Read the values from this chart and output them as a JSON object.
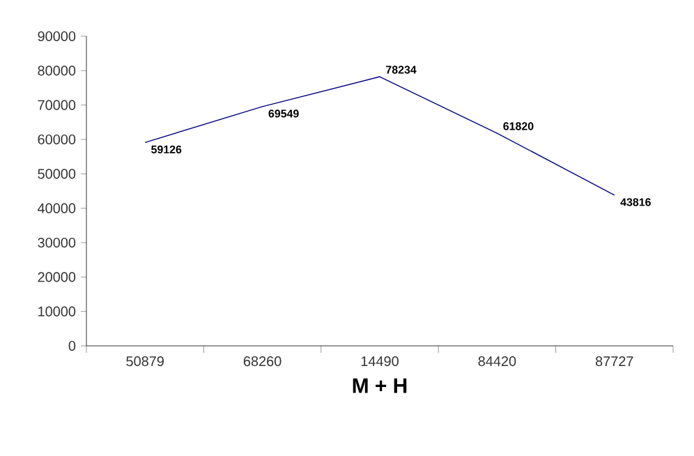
{
  "chart_data": {
    "type": "line",
    "xlabel": "M + H",
    "categories": [
      "50879",
      "68260",
      "14490",
      "84420",
      "87727"
    ],
    "values": [
      59126,
      69549,
      78234,
      61820,
      43816
    ],
    "color": "#000080",
    "data_labels": true,
    "marker": "none",
    "line_style": "solid",
    "grid": false,
    "ylim": [
      0,
      90000
    ],
    "yticks": [
      0,
      10000,
      20000,
      30000,
      40000,
      50000,
      60000,
      70000,
      80000,
      90000
    ]
  }
}
